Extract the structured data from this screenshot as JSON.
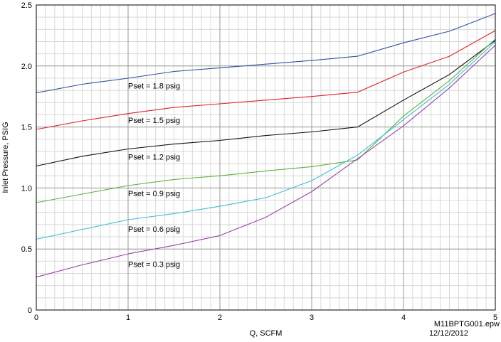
{
  "chart_data": {
    "type": "line",
    "title": "",
    "xlabel": "Q, SCFM",
    "ylabel": "Inlet Pressure, PSIG",
    "xlim": [
      0,
      5
    ],
    "ylim": [
      0,
      2.5
    ],
    "x_ticks": [
      "0",
      "1",
      "2",
      "3",
      "4",
      "5"
    ],
    "y_ticks": [
      "0",
      "0.5",
      "1.0",
      "1.5",
      "2.0",
      "2.5"
    ],
    "x_minor_step": 0.1,
    "y_minor_step": 0.1,
    "grid": true,
    "series": [
      {
        "name": "Pset = 1.8 psig",
        "color": "#2f4f9f",
        "x": [
          0,
          0.5,
          1,
          1.5,
          2,
          2.5,
          3,
          3.5,
          4,
          4.5,
          5
        ],
        "y": [
          1.78,
          1.85,
          1.9,
          1.955,
          1.985,
          2.015,
          2.045,
          2.08,
          2.19,
          2.285,
          2.43
        ]
      },
      {
        "name": "Pset = 1.5 psig",
        "color": "#e02020",
        "x": [
          0,
          0.5,
          1,
          1.5,
          2,
          2.5,
          3,
          3.5,
          4,
          4.5,
          5
        ],
        "y": [
          1.48,
          1.55,
          1.61,
          1.66,
          1.69,
          1.72,
          1.75,
          1.785,
          1.95,
          2.08,
          2.29
        ]
      },
      {
        "name": "Pset = 1.2 psig",
        "color": "#111111",
        "x": [
          0,
          0.5,
          1,
          1.5,
          2,
          2.5,
          3,
          3.5,
          4,
          4.5,
          5
        ],
        "y": [
          1.18,
          1.26,
          1.32,
          1.36,
          1.39,
          1.43,
          1.46,
          1.5,
          1.72,
          1.93,
          2.21
        ]
      },
      {
        "name": "Pset = 0.9 psig",
        "color": "#5cb33a",
        "x": [
          0,
          0.5,
          1,
          1.5,
          2,
          2.5,
          3,
          3.5,
          4,
          4.5,
          5
        ],
        "y": [
          0.88,
          0.95,
          1.02,
          1.07,
          1.1,
          1.14,
          1.175,
          1.23,
          1.59,
          1.88,
          2.22
        ]
      },
      {
        "name": "Pset = 0.6 psig",
        "color": "#3cc0d8",
        "x": [
          0,
          0.5,
          1,
          1.5,
          2,
          2.5,
          3,
          3.5,
          4,
          4.5,
          5
        ],
        "y": [
          0.58,
          0.66,
          0.74,
          0.79,
          0.85,
          0.92,
          1.06,
          1.27,
          1.56,
          1.85,
          2.2
        ]
      },
      {
        "name": "Pset = 0.3 psig",
        "color": "#9a40a8",
        "x": [
          0,
          0.5,
          1,
          1.5,
          2,
          2.5,
          3,
          3.5,
          4,
          4.5,
          5
        ],
        "y": [
          0.27,
          0.37,
          0.46,
          0.53,
          0.61,
          0.76,
          0.97,
          1.24,
          1.51,
          1.82,
          2.17
        ]
      }
    ],
    "labels": [
      {
        "text": "Pset = 1.8 psig",
        "x": 1.0,
        "y": 1.84
      },
      {
        "text": "Pset = 1.5 psig",
        "x": 1.0,
        "y": 1.555
      },
      {
        "text": "Pset = 1.2 psig",
        "x": 1.0,
        "y": 1.255
      },
      {
        "text": "Pset = 0.9 psig",
        "x": 1.0,
        "y": 0.955
      },
      {
        "text": "Pset = 0.6 psig",
        "x": 1.0,
        "y": 0.665
      },
      {
        "text": "Pset = 0.3 psig",
        "x": 1.0,
        "y": 0.375
      }
    ],
    "annotation": {
      "line1": "M11BPTG001.epw",
      "line2": "12/12/2012"
    }
  }
}
